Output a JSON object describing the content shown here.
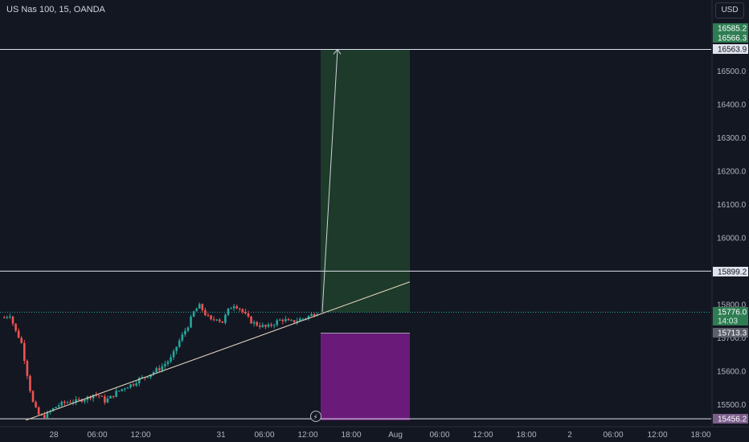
{
  "header": {
    "symbol_title": "US Nas 100, 15, OANDA",
    "currency": "USD"
  },
  "chart_data": {
    "type": "candlestick",
    "ylim": [
      15440,
      16640
    ],
    "y_ticks": [
      15500.0,
      15600.0,
      15700.0,
      15800.0,
      15900.0,
      16000.0,
      16100.0,
      16200.0,
      16300.0,
      16400.0,
      16500.0
    ],
    "x_ticks": [
      "28",
      "06:00",
      "12:00",
      "31",
      "06:00",
      "12:00",
      "18:00",
      "Aug",
      "06:00",
      "12:00",
      "18:00",
      "2",
      "06:00",
      "12:00",
      "18:00"
    ],
    "price_labels": [
      {
        "text": "16585.2",
        "kind": "target"
      },
      {
        "text": "16566.3",
        "kind": "target-sub"
      },
      {
        "text": "16563.9",
        "kind": "level"
      },
      {
        "text": "15899.2",
        "kind": "level"
      },
      {
        "text": "15776.0",
        "kind": "current"
      },
      {
        "text": "14:03",
        "kind": "countdown"
      },
      {
        "text": "15713.3",
        "kind": "stop"
      },
      {
        "text": "15456.2",
        "kind": "level"
      }
    ],
    "horizontal_levels": [
      16563.9,
      15899.2,
      15456.2
    ],
    "current_price": 15776.0,
    "position": {
      "entry": 15776.0,
      "target": 16563.9,
      "stop": 15713.3
    },
    "trendline": {
      "from": {
        "x": "28 00:00",
        "y": 15455
      },
      "to": {
        "x": "31 18:00",
        "y": 15867
      }
    },
    "projection_arrow": {
      "from": 15776.0,
      "to": 16563.9
    },
    "price_path": [
      15760,
      15770,
      15720,
      15690,
      15600,
      15510,
      15470,
      15462,
      15475,
      15490,
      15500,
      15505,
      15510,
      15508,
      15515,
      15520,
      15530,
      15525,
      15510,
      15520,
      15535,
      15545,
      15555,
      15560,
      15575,
      15580,
      15590,
      15600,
      15610,
      15625,
      15640,
      15680,
      15710,
      15740,
      15780,
      15795,
      15770,
      15750,
      15760,
      15745,
      15780,
      15800,
      15790,
      15770,
      15750,
      15740,
      15735,
      15730,
      15740,
      15750,
      15755,
      15745,
      15750,
      15755,
      15760,
      15768,
      15776
    ],
    "colors": {
      "up": "#26a69a",
      "down": "#ef5350",
      "profit_zone": "#1d3a2a",
      "loss_zone": "#6a1b7a",
      "level_line": "#e0e3eb",
      "label_green": "#2e7d52",
      "label_grey": "#5d606b",
      "label_purple": "#7b5e8a"
    }
  }
}
